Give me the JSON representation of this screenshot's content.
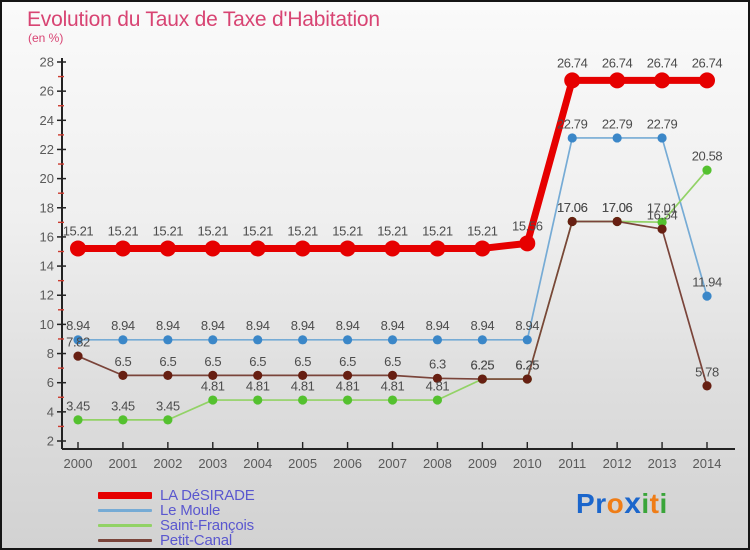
{
  "title": "Evolution du Taux de Taxe d'Habitation",
  "subtitle": "(en %)",
  "colors": {
    "title_pink": "#d84473",
    "legend_text_blue": "#5a57cf",
    "axis_color": "#222222",
    "tick_label_gray": "#5a5a5a",
    "value_label_gray": "#4c4c4c",
    "minor_tick_red": "#cc3b2f"
  },
  "chart_data": {
    "type": "line",
    "x": [
      2000,
      2001,
      2002,
      2003,
      2004,
      2005,
      2006,
      2007,
      2008,
      2009,
      2010,
      2011,
      2012,
      2013,
      2014
    ],
    "ylim": [
      2,
      28
    ],
    "y_tick_step": 2,
    "minor_tick_values": [
      3,
      5,
      7,
      9,
      11,
      13,
      15,
      17,
      19,
      21,
      23,
      25,
      27
    ],
    "minor_tick_color": "#cc3b2f",
    "grid": false,
    "value_labels": true,
    "legend_position": "bottom-left",
    "series": [
      {
        "name": "LA DéSIRADE",
        "line_color": "#e60000",
        "marker_color": "#e60000",
        "line_width": 7,
        "marker_radius": 8,
        "z": 4,
        "values": [
          15.21,
          15.21,
          15.21,
          15.21,
          15.21,
          15.21,
          15.21,
          15.21,
          15.21,
          15.21,
          15.56,
          26.74,
          26.74,
          26.74,
          26.74
        ]
      },
      {
        "name": "Le Moule",
        "line_color": "#76abd5",
        "marker_color": "#3b87c8",
        "line_width": 1.7,
        "marker_radius": 4.6,
        "z": 1,
        "values": [
          8.94,
          8.94,
          8.94,
          8.94,
          8.94,
          8.94,
          8.94,
          8.94,
          8.94,
          8.94,
          8.94,
          22.79,
          22.79,
          22.79,
          11.94
        ]
      },
      {
        "name": "Saint-François",
        "line_color": "#92d266",
        "marker_color": "#54c12f",
        "line_width": 1.7,
        "marker_radius": 4.6,
        "z": 2,
        "values": [
          3.45,
          3.45,
          3.45,
          4.81,
          4.81,
          4.81,
          4.81,
          4.81,
          4.81,
          6.25,
          6.25,
          17.06,
          17.06,
          17.01,
          20.58
        ]
      },
      {
        "name": "Petit-Canal",
        "line_color": "#7a443a",
        "marker_color": "#671f12",
        "line_width": 1.7,
        "marker_radius": 4.6,
        "z": 3,
        "values": [
          7.82,
          6.5,
          6.5,
          6.5,
          6.5,
          6.5,
          6.5,
          6.5,
          6.3,
          6.25,
          6.25,
          17.06,
          17.06,
          16.54,
          5.78
        ]
      }
    ]
  },
  "logo": {
    "text": "Proxiti",
    "letters": [
      {
        "ch": "P",
        "color": "#1b66cc"
      },
      {
        "ch": "r",
        "color": "#1b66cc"
      },
      {
        "ch": "o",
        "color": "#ef7d17"
      },
      {
        "ch": "x",
        "color": "#1b66cc",
        "bold": true
      },
      {
        "ch": "i",
        "color": "#3aa53a"
      },
      {
        "ch": "t",
        "color": "#ef7d17"
      },
      {
        "ch": "i",
        "color": "#3aa53a"
      }
    ]
  }
}
